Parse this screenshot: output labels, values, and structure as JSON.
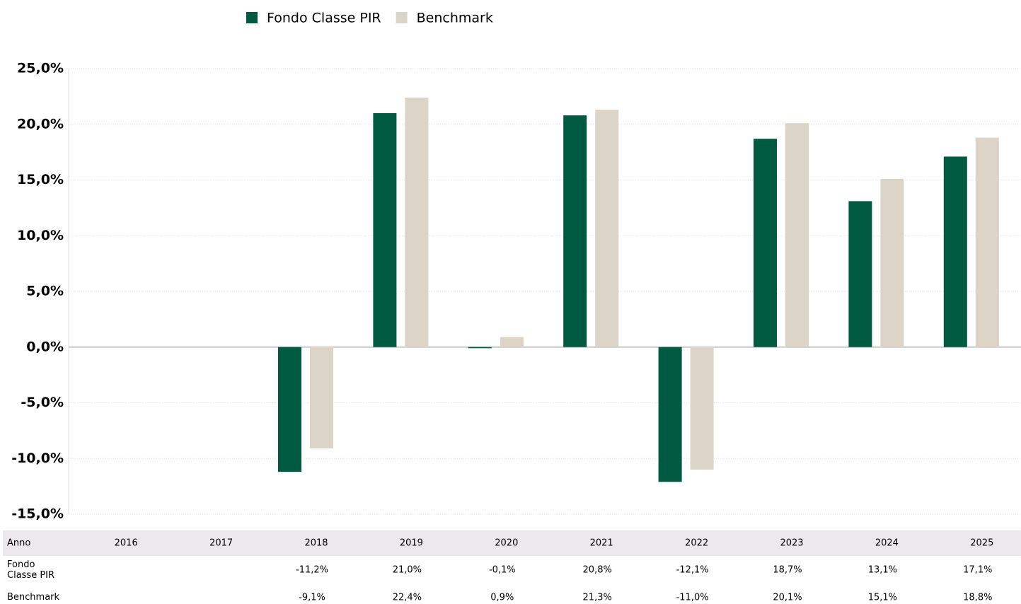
{
  "chart_data": {
    "type": "bar",
    "categories": [
      "2016",
      "2017",
      "2018",
      "2019",
      "2020",
      "2021",
      "2022",
      "2023",
      "2024",
      "2025"
    ],
    "x_label": "Anno",
    "series": [
      {
        "name": "Fondo Classe PIR",
        "color": "#005a41",
        "values": [
          null,
          null,
          -11.2,
          21.0,
          -0.1,
          20.8,
          -12.1,
          18.7,
          13.1,
          17.1
        ],
        "value_labels": [
          null,
          null,
          "-11,2%",
          "21,0%",
          "-0,1%",
          "20,8%",
          "-12,1%",
          "18,7%",
          "13,1%",
          "17,1%"
        ]
      },
      {
        "name": "Benchmark",
        "color": "#ddd4c8",
        "values": [
          null,
          null,
          -9.1,
          22.4,
          0.9,
          21.3,
          -11.0,
          20.1,
          15.1,
          18.8
        ],
        "value_labels": [
          null,
          null,
          "-9,1%",
          "22,4%",
          "0,9%",
          "21,3%",
          "-11,0%",
          "20,1%",
          "15,1%",
          "18,8%"
        ]
      }
    ],
    "ylim": [
      -15,
      25
    ],
    "yticks": [
      {
        "value": -15,
        "label": "-15,0%"
      },
      {
        "value": -10,
        "label": "-10,0%"
      },
      {
        "value": -5,
        "label": "-5,0%"
      },
      {
        "value": 0,
        "label": "0,0%"
      },
      {
        "value": 5,
        "label": "5,0%"
      },
      {
        "value": 10,
        "label": "10,0%"
      },
      {
        "value": 15,
        "label": "15,0%"
      },
      {
        "value": 20,
        "label": "20,0%"
      },
      {
        "value": 25,
        "label": "25,0%"
      }
    ],
    "grid": true
  }
}
